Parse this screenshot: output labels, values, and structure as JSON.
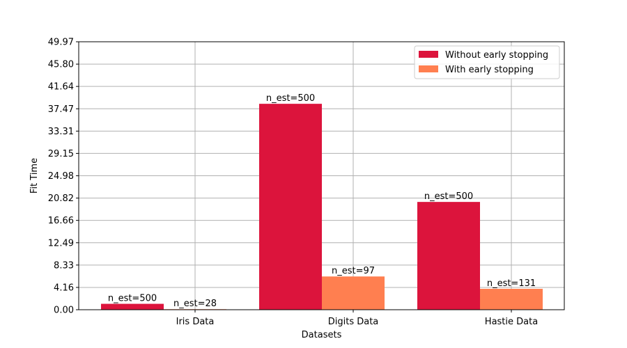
{
  "chart_data": {
    "type": "bar",
    "title": "",
    "xlabel": "Datasets",
    "ylabel": "Fit Time",
    "categories": [
      "Iris Data",
      "Digits Data",
      "Hastie Data"
    ],
    "ylim": [
      0,
      49.97
    ],
    "yticks": [
      "0.00",
      "4.16",
      "8.33",
      "12.49",
      "16.66",
      "20.82",
      "24.98",
      "29.15",
      "33.31",
      "37.47",
      "41.64",
      "45.80",
      "49.97"
    ],
    "grid": true,
    "legend_position": "top-right",
    "series": [
      {
        "name": "Without early stopping",
        "color": "#dc143c",
        "values": [
          1.1,
          38.4,
          20.1
        ],
        "labels": [
          "n_est=500",
          "n_est=500",
          "n_est=500"
        ]
      },
      {
        "name": "With early stopping",
        "color": "#ff7f50",
        "values": [
          0.1,
          6.2,
          3.9
        ],
        "labels": [
          "n_est=28",
          "n_est=97",
          "n_est=131"
        ]
      }
    ]
  }
}
